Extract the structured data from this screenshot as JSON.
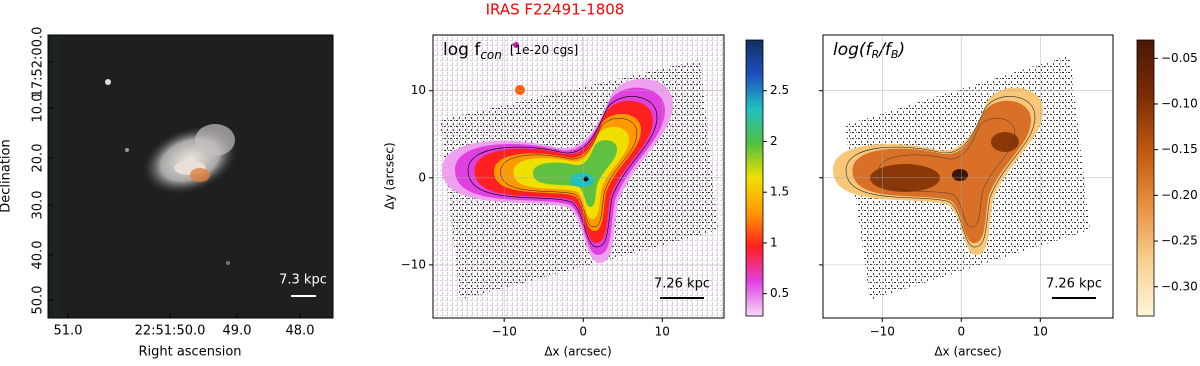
{
  "chart_data": [
    {
      "type": "image",
      "xlabel": "Right ascension",
      "ylabel": "Declination",
      "xticks": [
        "51.0",
        "22:51:50.0",
        "49.0",
        "48.0"
      ],
      "yticks": [
        "17:52:00.0",
        "10.0",
        "20.0",
        "30.0",
        "40.0",
        "50.0"
      ],
      "scalebar": "7.3 kpc"
    },
    {
      "type": "image",
      "title": "IRAS F22491-1808",
      "title_color": "#ff0000",
      "annotation": "log f",
      "annotation_sub": "con",
      "units": "[1e-20 cgs]",
      "xlabel": "Δx (arcsec)",
      "ylabel": "Δy (arcsec)",
      "xlim": [
        -19,
        17.8
      ],
      "ylim": [
        -16.1,
        16.4
      ],
      "xticks": [
        {
          "value": -10,
          "label": "−10"
        },
        0,
        10
      ],
      "yticks": [
        {
          "value": -10,
          "label": "−10"
        },
        0,
        10
      ],
      "grid": true,
      "ytick_labels": true,
      "colorbar": {
        "lim": [
          0.28,
          3.0
        ],
        "ticks": [
          0.5,
          1.0,
          1.5,
          2.0,
          2.5
        ],
        "colors": [
          "#f8d8f8",
          "#e040e0",
          "#ff2020",
          "#ff9900",
          "#f0e000",
          "#50c040",
          "#20c0c0",
          "#2050c0",
          "#103060"
        ]
      },
      "scalebar": "7.26 kpc"
    },
    {
      "type": "image",
      "annotation": "log(f",
      "annotation_sub": "R",
      "annotation2": "/f",
      "annotation_sub2": "B",
      "annotation3": ")",
      "xlabel": "Δx (arcsec)",
      "xlim": [
        -17.5,
        19.2
      ],
      "ylim": [
        -16.1,
        16.4
      ],
      "xticks": [
        {
          "value": -10,
          "label": "−10"
        },
        0,
        10
      ],
      "yticks": [
        -10,
        0,
        10
      ],
      "grid": true,
      "ytick_labels": false,
      "colorbar": {
        "lim": [
          -0.332,
          -0.03
        ],
        "ticks": [
          {
            "value": -0.3,
            "label": "−0.30"
          },
          {
            "value": -0.25,
            "label": "−0.25"
          },
          {
            "value": -0.2,
            "label": "−0.20"
          },
          {
            "value": -0.15,
            "label": "−0.15"
          },
          {
            "value": -0.1,
            "label": "−0.10"
          },
          {
            "value": -0.05,
            "label": "−0.05"
          }
        ],
        "colors": [
          "#fff6d8",
          "#f8d090",
          "#e89040",
          "#c05810",
          "#7a2c08",
          "#4a1804"
        ]
      },
      "scalebar": "7.26 kpc"
    }
  ]
}
